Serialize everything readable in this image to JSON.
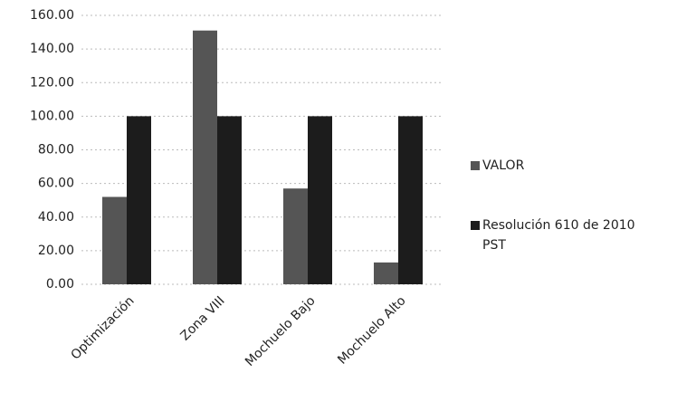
{
  "chart_data": {
    "type": "bar",
    "categories": [
      "Optimización",
      "Zona VIII",
      "Mochuelo Bajo",
      "Mochuelo Alto"
    ],
    "series": [
      {
        "name": "VALOR",
        "color": "#555555",
        "values": [
          52,
          151,
          57,
          13
        ]
      },
      {
        "name": "Resolución 610 de 2010 PST",
        "color": "#1c1c1c",
        "values": [
          100,
          100,
          100,
          100
        ]
      }
    ],
    "ylim": [
      0,
      160
    ],
    "yticks": [
      {
        "value": 0,
        "label": "0.00"
      },
      {
        "value": 20,
        "label": "20.00"
      },
      {
        "value": 40,
        "label": "40.00"
      },
      {
        "value": 60,
        "label": "60.00"
      },
      {
        "value": 80,
        "label": "80.00"
      },
      {
        "value": 100,
        "label": "100.00"
      },
      {
        "value": 120,
        "label": "120.00"
      },
      {
        "value": 140,
        "label": "140.00"
      },
      {
        "value": 160,
        "label": "160.00"
      }
    ],
    "grid": true,
    "legend": "right"
  }
}
